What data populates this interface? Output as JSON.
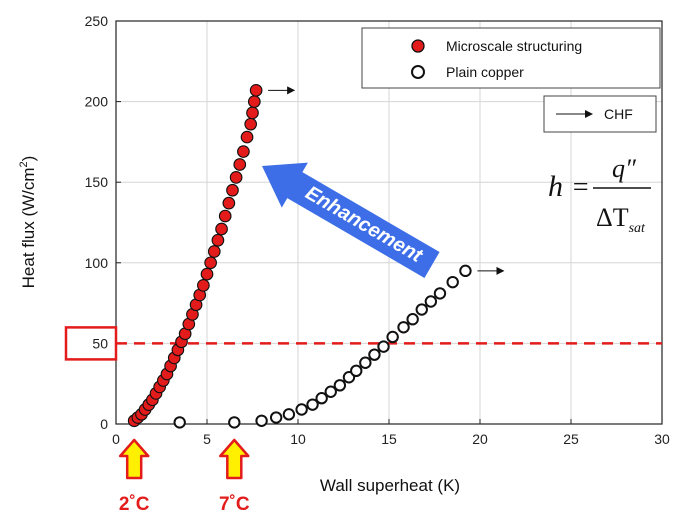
{
  "chart_data": {
    "type": "scatter",
    "xlabel": "Wall superheat (K)",
    "ylabel_main": "Heat flux (W/cm",
    "ylabel_sup": "2",
    "ylabel_end": ")",
    "xlim": [
      0,
      30
    ],
    "ylim": [
      0,
      250
    ],
    "xticks": [
      0,
      5,
      10,
      15,
      20,
      25,
      30
    ],
    "yticks": [
      0,
      50,
      100,
      150,
      200,
      250
    ],
    "grid": true,
    "legend_position": "top-right",
    "series": [
      {
        "name": "Microscale structuring",
        "marker": "filled-circle",
        "color": "#e31b1b",
        "x": [
          1.0,
          1.2,
          1.4,
          1.6,
          1.8,
          2.0,
          2.2,
          2.4,
          2.6,
          2.8,
          3.0,
          3.2,
          3.4,
          3.6,
          3.8,
          4.0,
          4.2,
          4.4,
          4.6,
          4.8,
          5.0,
          5.2,
          5.4,
          5.6,
          5.8,
          6.0,
          6.2,
          6.4,
          6.6,
          6.8,
          7.0,
          7.2,
          7.4,
          7.5,
          7.6,
          7.7
        ],
        "y": [
          2,
          4,
          6,
          9,
          12,
          15,
          19,
          23,
          27,
          31,
          36,
          41,
          46,
          51,
          56,
          62,
          68,
          74,
          80,
          86,
          93,
          100,
          107,
          114,
          121,
          129,
          137,
          145,
          153,
          161,
          169,
          178,
          186,
          193,
          200,
          207
        ]
      },
      {
        "name": "Plain copper",
        "marker": "open-circle",
        "color": "#111111",
        "x": [
          3.5,
          6.5,
          8.0,
          8.8,
          9.5,
          10.2,
          10.8,
          11.3,
          11.8,
          12.3,
          12.8,
          13.2,
          13.7,
          14.2,
          14.7,
          15.2,
          15.8,
          16.3,
          16.8,
          17.3,
          17.8,
          18.5,
          19.2
        ],
        "y": [
          1,
          1,
          2,
          4,
          6,
          9,
          12,
          16,
          20,
          24,
          29,
          33,
          38,
          43,
          48,
          54,
          60,
          65,
          71,
          76,
          81,
          88,
          95
        ]
      }
    ],
    "chf_points": [
      {
        "x": 7.7,
        "y": 207
      },
      {
        "x": 19.2,
        "y": 95
      }
    ],
    "chf_legend_label": "CHF",
    "reference_line_y": 50,
    "reference_line_color": "#e31b1b",
    "enhancement_label": "Enhancement",
    "enhancement_color": "#3d6ee8",
    "equation": {
      "lhs": "h",
      "eq": "=",
      "numerator": "q″",
      "denominator_main": "ΔT",
      "denominator_sub": "sat"
    },
    "superheat_markers": [
      {
        "x": 1.0,
        "label": "2˚C"
      },
      {
        "x": 6.5,
        "label": "7˚C"
      }
    ],
    "arrow_color": "#ffef00",
    "arrow_outline": "#e31b1b"
  }
}
